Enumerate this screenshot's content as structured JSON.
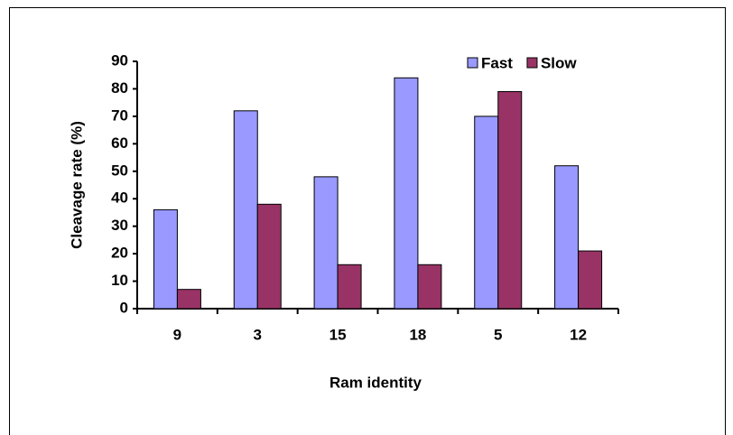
{
  "chart_data": {
    "type": "bar",
    "x_label": "Ram identity",
    "y_label": "Cleavage rate (%)",
    "categories": [
      "9",
      "3",
      "15",
      "18",
      "5",
      "12"
    ],
    "series": [
      {
        "name": "Fast",
        "color": "#9999ff",
        "values": [
          36,
          72,
          48,
          84,
          70,
          52
        ]
      },
      {
        "name": "Slow",
        "color": "#993366",
        "values": [
          7,
          38,
          16,
          16,
          79,
          21
        ]
      }
    ],
    "ylim": [
      0,
      90
    ],
    "yticks": [
      0,
      10,
      20,
      30,
      40,
      50,
      60,
      70,
      80,
      90
    ],
    "legend": "top-right"
  }
}
